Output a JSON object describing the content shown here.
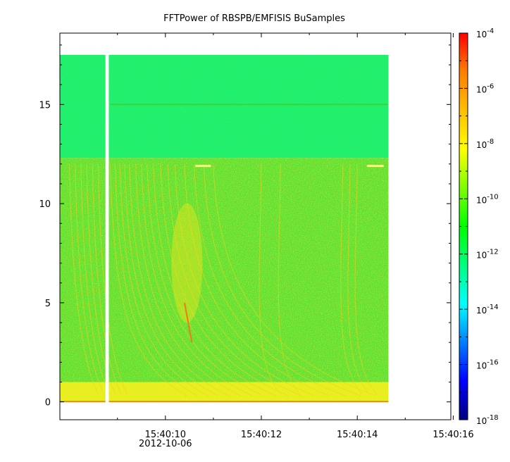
{
  "chart_data": {
    "type": "heatmap",
    "title": "FFTPower of RBSPB/EMFISIS  BuSamples",
    "xlabel": "",
    "ylabel": "",
    "x_ticks": [
      {
        "label": "15:40:10",
        "sublabel": "2012-10-06",
        "t": 10
      },
      {
        "label": "15:40:12",
        "t": 12
      },
      {
        "label": "15:40:14",
        "t": 14
      },
      {
        "label": "15:40:16",
        "t": 16
      }
    ],
    "x_minor_ticks": [
      9,
      11,
      13,
      15
    ],
    "xlim_seconds_after_15_40": [
      7.8,
      15.95
    ],
    "data_extent_seconds_after_15_40": [
      7.8,
      14.65
    ],
    "data_gap_seconds_after_15_40": [
      8.75,
      8.82
    ],
    "y_ticks": [
      0,
      5,
      10,
      15
    ],
    "ylim": [
      -0.9,
      18.6
    ],
    "frequency_extent": [
      0,
      17.5
    ],
    "colorbar": {
      "scale": "log",
      "range": [
        1e-18,
        0.0001
      ],
      "tick_exponents": [
        "-18",
        "-16",
        "-14",
        "-12",
        "-10",
        "-8",
        "-6",
        "-4"
      ],
      "tick_base": "10",
      "colormap": [
        "#00007f",
        "#0000ff",
        "#007fff",
        "#00ffff",
        "#00ff7f",
        "#00ff00",
        "#7fff00",
        "#ffff00",
        "#ffbf00",
        "#ff7f00",
        "#ff0000"
      ]
    },
    "bands": [
      {
        "name": "upper-band",
        "f_range": [
          12.3,
          17.5
        ],
        "level_log10": -12.3,
        "color": "#1ef06e"
      },
      {
        "name": "lower-band",
        "f_range": [
          1.0,
          12.3
        ],
        "level_log10": -10.2,
        "color": "#5fe030"
      },
      {
        "name": "low-frequency-band",
        "f_range": [
          0,
          1.0
        ],
        "level_log10": -8.6,
        "color": "#e6ee1a"
      }
    ],
    "features": [
      {
        "name": "15-khz-line",
        "f": 15.0,
        "color": "#3fd23a"
      },
      {
        "name": "12-khz-patch-1",
        "t_range": [
          10.62,
          10.95
        ],
        "f": 11.9,
        "color": "#f6ff7a"
      },
      {
        "name": "12-khz-patch-2",
        "t_range": [
          14.2,
          14.55
        ],
        "f": 11.9,
        "color": "#f6ff7a"
      }
    ]
  }
}
